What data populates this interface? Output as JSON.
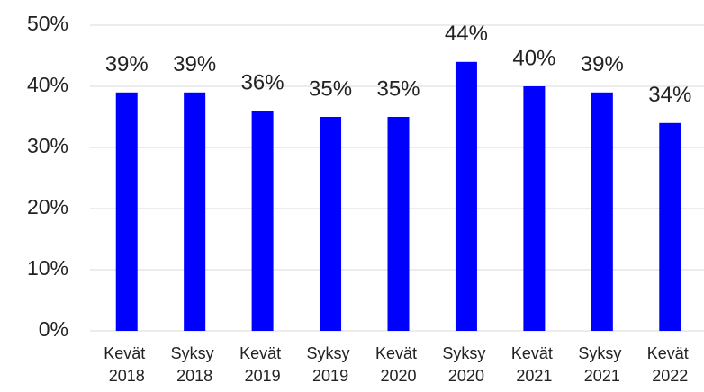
{
  "chart_data": {
    "type": "bar",
    "categories": [
      "Kevät 2018",
      "Syksy 2018",
      "Kevät 2019",
      "Syksy 2019",
      "Kevät 2020",
      "Syksy 2020",
      "Kevät 2021",
      "Syksy 2021",
      "Kevät 2022"
    ],
    "values": [
      39,
      39,
      36,
      35,
      35,
      44,
      40,
      39,
      34
    ],
    "value_labels": [
      "39%",
      "39%",
      "36%",
      "35%",
      "35%",
      "44%",
      "40%",
      "39%",
      "34%"
    ],
    "color": "#0000ff",
    "ylim": [
      0,
      50
    ],
    "yticks": [
      {
        "value": 0,
        "label": "0%"
      },
      {
        "value": 10,
        "label": "10%"
      },
      {
        "value": 20,
        "label": "20%"
      },
      {
        "value": 30,
        "label": "30%"
      },
      {
        "value": 40,
        "label": "40%"
      },
      {
        "value": 50,
        "label": "50%"
      }
    ],
    "grid": true
  }
}
